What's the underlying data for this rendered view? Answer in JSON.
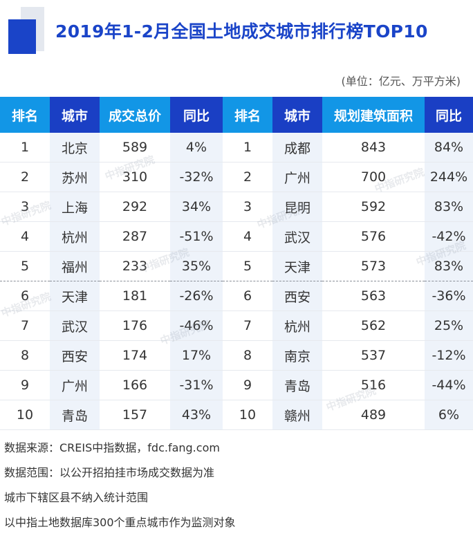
{
  "title": "2019年1-2月全国土地成交城市排行榜TOP10",
  "unit": "(单位：亿元、万平方米)",
  "headers": [
    "排名",
    "城市",
    "成交总价",
    "同比",
    "排名",
    "城市",
    "规划建筑面积",
    "同比"
  ],
  "rows": [
    [
      "1",
      "北京",
      "589",
      "4%",
      "1",
      "成都",
      "843",
      "84%"
    ],
    [
      "2",
      "苏州",
      "310",
      "-32%",
      "2",
      "广州",
      "700",
      "244%"
    ],
    [
      "3",
      "上海",
      "292",
      "34%",
      "3",
      "昆明",
      "592",
      "83%"
    ],
    [
      "4",
      "杭州",
      "287",
      "-51%",
      "4",
      "武汉",
      "576",
      "-42%"
    ],
    [
      "5",
      "福州",
      "233",
      "35%",
      "5",
      "天津",
      "573",
      "83%"
    ],
    [
      "6",
      "天津",
      "181",
      "-26%",
      "6",
      "西安",
      "563",
      "-36%"
    ],
    [
      "7",
      "武汉",
      "176",
      "-46%",
      "7",
      "杭州",
      "562",
      "25%"
    ],
    [
      "8",
      "西安",
      "174",
      "17%",
      "8",
      "南京",
      "537",
      "-12%"
    ],
    [
      "9",
      "广州",
      "166",
      "-31%",
      "9",
      "青岛",
      "516",
      "-44%"
    ],
    [
      "10",
      "青岛",
      "157",
      "43%",
      "10",
      "赣州",
      "489",
      "6%"
    ]
  ],
  "watermark": "中指研究院",
  "notes": [
    "数据来源：CREIS中指数据，fdc.fang.com",
    "数据范围：以公开招拍挂市场成交数据为准",
    "城市下辖区县不纳入统计范围",
    "以中指土地数据库300个重点城市作为监测对象"
  ],
  "colors": {
    "title_blue": "#1a44c8",
    "header_light_blue": "#1296e6",
    "header_dark_blue": "#1a3fc4",
    "row_shade": "#eef3fa"
  }
}
